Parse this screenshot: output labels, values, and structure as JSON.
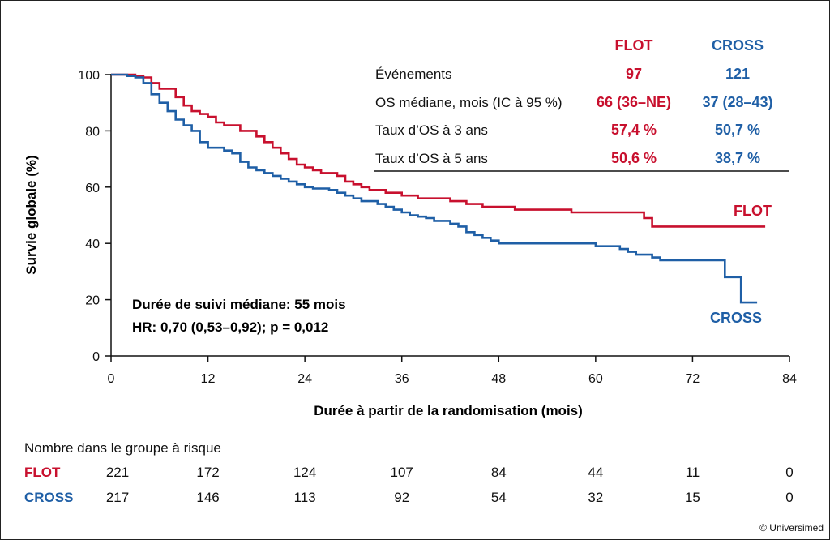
{
  "colors": {
    "flot": "#c8102e",
    "cross": "#1f5fa6",
    "axis": "#111111"
  },
  "chart_data": {
    "type": "line",
    "subtype": "kaplan-meier",
    "xlabel": "Durée à partir de la randomisation (mois)",
    "ylabel": "Survie globale (%)",
    "xlim": [
      0,
      84
    ],
    "ylim": [
      0,
      100
    ],
    "xticks": [
      0,
      12,
      24,
      36,
      48,
      60,
      72,
      84
    ],
    "yticks": [
      0,
      20,
      40,
      60,
      80,
      100
    ],
    "grid": false,
    "series": [
      {
        "name": "FLOT",
        "color": "#c8102e",
        "points": [
          [
            0,
            100
          ],
          [
            3,
            99.5
          ],
          [
            4,
            99
          ],
          [
            5,
            97
          ],
          [
            6,
            95
          ],
          [
            7,
            95
          ],
          [
            8,
            92
          ],
          [
            9,
            89
          ],
          [
            10,
            87
          ],
          [
            11,
            86
          ],
          [
            12,
            85
          ],
          [
            13,
            83
          ],
          [
            14,
            82
          ],
          [
            16,
            80
          ],
          [
            18,
            78
          ],
          [
            19,
            76
          ],
          [
            20,
            74
          ],
          [
            21,
            72
          ],
          [
            22,
            70
          ],
          [
            23,
            68
          ],
          [
            24,
            67
          ],
          [
            25,
            66
          ],
          [
            26,
            65
          ],
          [
            28,
            64
          ],
          [
            29,
            62
          ],
          [
            30,
            61
          ],
          [
            31,
            60
          ],
          [
            32,
            59
          ],
          [
            34,
            58
          ],
          [
            36,
            57
          ],
          [
            38,
            56
          ],
          [
            40,
            56
          ],
          [
            42,
            55
          ],
          [
            44,
            54
          ],
          [
            46,
            53
          ],
          [
            48,
            53
          ],
          [
            49,
            53
          ],
          [
            50,
            52
          ],
          [
            52,
            52
          ],
          [
            54,
            52
          ],
          [
            56,
            52
          ],
          [
            57,
            51
          ],
          [
            60,
            51
          ],
          [
            62,
            51
          ],
          [
            64,
            51
          ],
          [
            65,
            51
          ],
          [
            66,
            49
          ],
          [
            67,
            46
          ],
          [
            70,
            46
          ],
          [
            72,
            46
          ],
          [
            75,
            46
          ],
          [
            78,
            46
          ],
          [
            81,
            46
          ]
        ]
      },
      {
        "name": "CROSS",
        "color": "#1f5fa6",
        "points": [
          [
            0,
            100
          ],
          [
            2,
            99.5
          ],
          [
            3,
            99
          ],
          [
            4,
            97
          ],
          [
            5,
            93
          ],
          [
            6,
            90
          ],
          [
            7,
            87
          ],
          [
            8,
            84
          ],
          [
            9,
            82
          ],
          [
            10,
            80
          ],
          [
            11,
            76
          ],
          [
            12,
            74
          ],
          [
            14,
            73
          ],
          [
            15,
            72
          ],
          [
            16,
            69
          ],
          [
            17,
            67
          ],
          [
            18,
            66
          ],
          [
            19,
            65
          ],
          [
            20,
            64
          ],
          [
            21,
            63
          ],
          [
            22,
            62
          ],
          [
            23,
            61
          ],
          [
            24,
            60
          ],
          [
            25,
            59.5
          ],
          [
            27,
            59
          ],
          [
            28,
            58
          ],
          [
            29,
            57
          ],
          [
            30,
            56
          ],
          [
            31,
            55
          ],
          [
            32,
            55
          ],
          [
            33,
            54
          ],
          [
            34,
            53
          ],
          [
            35,
            52
          ],
          [
            36,
            51
          ],
          [
            37,
            50
          ],
          [
            38,
            49.5
          ],
          [
            39,
            49
          ],
          [
            40,
            48
          ],
          [
            41,
            48
          ],
          [
            42,
            47
          ],
          [
            43,
            46
          ],
          [
            44,
            44
          ],
          [
            45,
            43
          ],
          [
            46,
            42
          ],
          [
            47,
            41
          ],
          [
            48,
            40
          ],
          [
            49,
            40
          ],
          [
            50,
            40
          ],
          [
            52,
            40
          ],
          [
            55,
            40
          ],
          [
            57,
            40
          ],
          [
            59,
            40
          ],
          [
            60,
            39
          ],
          [
            62,
            39
          ],
          [
            63,
            38
          ],
          [
            64,
            37
          ],
          [
            65,
            36
          ],
          [
            66,
            36
          ],
          [
            67,
            35
          ],
          [
            68,
            34
          ],
          [
            69,
            34
          ],
          [
            72,
            34
          ],
          [
            75,
            34
          ],
          [
            76,
            28
          ],
          [
            77,
            28
          ],
          [
            78,
            19
          ],
          [
            80,
            19
          ]
        ]
      }
    ],
    "series_labels": [
      "FLOT",
      "CROSS"
    ],
    "annotations": [
      "Durée de suivi médiane: 55 mois",
      "HR: 0,70 (0,53–0,92); p = 0,012"
    ]
  },
  "stats_table": {
    "headers": [
      "FLOT",
      "CROSS"
    ],
    "rows": [
      {
        "label": "Événements",
        "flot": "97",
        "cross": "121"
      },
      {
        "label": "OS médiane, mois (IC à 95 %)",
        "flot": "66 (36–NE)",
        "cross": "37 (28–43)"
      },
      {
        "label": "Taux d’OS à 3 ans",
        "flot": "57,4 %",
        "cross": "50,7 %"
      },
      {
        "label": "Taux d’OS à 5 ans",
        "flot": "50,6 %",
        "cross": "38,7 %"
      }
    ]
  },
  "risk_table": {
    "title": "Nombre dans le groupe à risque",
    "rows": [
      {
        "name": "FLOT",
        "values": [
          "221",
          "172",
          "124",
          "107",
          "84",
          "44",
          "11",
          "0"
        ]
      },
      {
        "name": "CROSS",
        "values": [
          "217",
          "146",
          "113",
          "92",
          "54",
          "32",
          "15",
          "0"
        ]
      }
    ]
  },
  "copyright": "© Universimed"
}
